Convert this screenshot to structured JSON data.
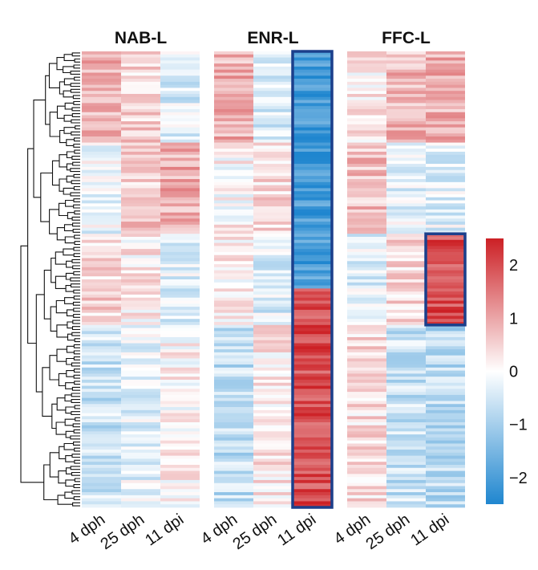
{
  "chart_data": {
    "type": "heatmap",
    "panels": [
      {
        "title": "NAB-L",
        "columns": [
          "4 dph",
          "25 dph",
          "11 dpi"
        ]
      },
      {
        "title": "ENR-L",
        "columns": [
          "4 dph",
          "25 dph",
          "11 dpi"
        ]
      },
      {
        "title": "FFC-L",
        "columns": [
          "4 dph",
          "25 dph",
          "11 dpi"
        ]
      }
    ],
    "row_count": 150,
    "value_range": [
      -2.5,
      2.5
    ],
    "colorbar_ticks": [
      2,
      1,
      0,
      -1,
      -2
    ],
    "colorscale": {
      "low": "#1f86cf",
      "mid": "#ffffff",
      "high": "#cc2025"
    },
    "highlight_boxes": [
      {
        "panel": "ENR-L",
        "column": "11 dpi",
        "rows": [
          1,
          150
        ]
      },
      {
        "panel": "FFC-L",
        "column": "11 dpi",
        "rows": [
          61,
          90
        ]
      }
    ],
    "highlight_color": "#1b3f8b",
    "dendrogram": "left",
    "legend_position": "right"
  }
}
